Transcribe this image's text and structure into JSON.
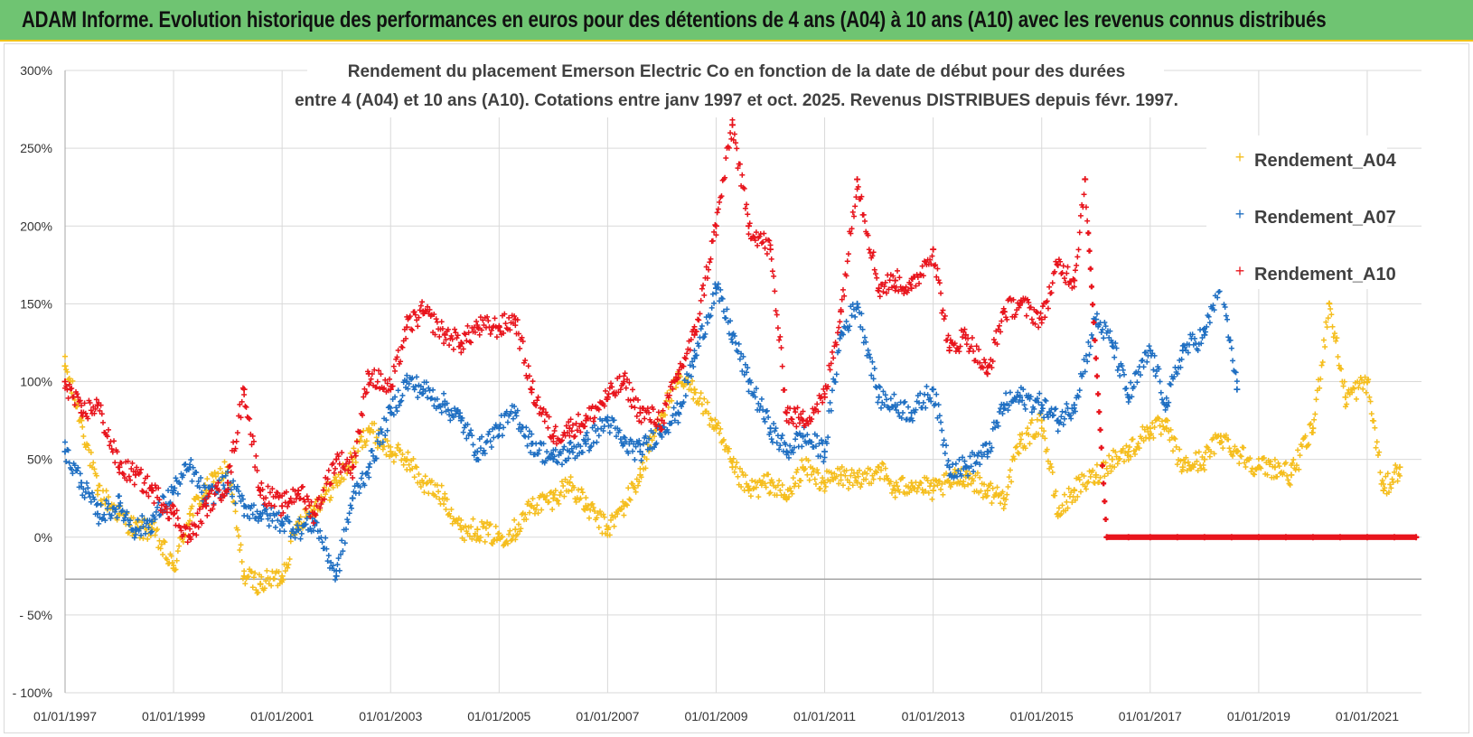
{
  "header": {
    "title": "ADAM Informe. Evolution historique des performances en euros pour des détentions de 4 ans (A04) à 10 ans (A10) avec les revenus connus distribués"
  },
  "colors": {
    "header_bg": "#6fc472",
    "accent_border": "#f0c419",
    "A04": "#f5be1e",
    "A07": "#1f6fc2",
    "A10": "#e8141c",
    "grid": "#d9d9d9"
  },
  "chart_data": {
    "type": "scatter",
    "title_line1": "Rendement du placement Emerson Electric Co en fonction de la date de début pour des durées",
    "title_line2": "entre 4 (A04) et 10 ans (A10). Cotations entre janv 1997 et oct. 2025. Revenus DISTRIBUES depuis févr. 1997.",
    "xlabel": "",
    "ylabel": "",
    "xlim": [
      1997.0,
      2022.0
    ],
    "ylim": [
      -100,
      300
    ],
    "yticks": [
      -100,
      -50,
      0,
      50,
      100,
      150,
      200,
      250,
      300
    ],
    "ytick_labels": [
      "- 100%",
      "- 50%",
      "0%",
      "50%",
      "100%",
      "150%",
      "200%",
      "250%",
      "300%"
    ],
    "xticks": [
      1997,
      1999,
      2001,
      2003,
      2005,
      2007,
      2009,
      2011,
      2013,
      2015,
      2017,
      2019,
      2021
    ],
    "xtick_labels": [
      "01/01/1997",
      "01/01/1999",
      "01/01/2001",
      "01/01/2003",
      "01/01/2005",
      "01/01/2007",
      "01/01/2009",
      "01/01/2011",
      "01/01/2013",
      "01/01/2015",
      "01/01/2017",
      "01/01/2019",
      "01/01/2021"
    ],
    "grid": true,
    "legend_position": "top-right",
    "series": [
      {
        "name": "Rendement_A04",
        "color": "#f5be1e",
        "marker": "+",
        "x": [
          1997.0,
          1997.3,
          1997.6,
          1998.0,
          1998.3,
          1998.6,
          1999.0,
          1999.3,
          1999.6,
          2000.0,
          2000.3,
          2000.6,
          2001.0,
          2001.3,
          2001.6,
          2002.0,
          2002.3,
          2002.6,
          2003.0,
          2003.3,
          2003.6,
          2004.0,
          2004.3,
          2004.6,
          2005.0,
          2005.3,
          2005.6,
          2006.0,
          2006.3,
          2006.6,
          2007.0,
          2007.3,
          2007.6,
          2008.0,
          2008.3,
          2008.6,
          2009.0,
          2009.3,
          2009.6,
          2010.0,
          2010.3,
          2010.6,
          2011.0,
          2011.3,
          2011.6,
          2012.0,
          2012.3,
          2012.6,
          2013.0,
          2013.3,
          2013.6,
          2014.0,
          2014.3,
          2014.6,
          2015.0,
          2015.3,
          2015.6,
          2016.0,
          2016.3,
          2016.6,
          2017.0,
          2017.3,
          2017.6,
          2018.0,
          2018.3,
          2018.6,
          2019.0,
          2019.3,
          2019.6,
          2020.0,
          2020.3,
          2020.6,
          2021.0,
          2021.3,
          2021.6
        ],
        "y": [
          110,
          75,
          30,
          15,
          5,
          5,
          -20,
          15,
          30,
          45,
          -25,
          -30,
          -25,
          10,
          20,
          35,
          50,
          70,
          55,
          50,
          35,
          25,
          5,
          5,
          0,
          5,
          20,
          25,
          35,
          20,
          5,
          20,
          40,
          80,
          100,
          95,
          70,
          45,
          30,
          35,
          25,
          45,
          35,
          40,
          35,
          45,
          30,
          35,
          30,
          35,
          40,
          30,
          25,
          60,
          75,
          15,
          30,
          40,
          50,
          55,
          70,
          70,
          45,
          50,
          65,
          55,
          45,
          45,
          40,
          70,
          150,
          90,
          100,
          30,
          45
        ]
      },
      {
        "name": "Rendement_A07",
        "color": "#1f6fc2",
        "marker": "+",
        "x": [
          1997.0,
          1997.3,
          1997.6,
          1998.0,
          1998.3,
          1998.6,
          1999.0,
          1999.3,
          1999.6,
          2000.0,
          2000.3,
          2000.6,
          2001.0,
          2001.3,
          2001.6,
          2002.0,
          2002.3,
          2002.6,
          2003.0,
          2003.3,
          2003.6,
          2004.0,
          2004.3,
          2004.6,
          2005.0,
          2005.3,
          2005.6,
          2006.0,
          2006.3,
          2006.6,
          2007.0,
          2007.3,
          2007.6,
          2008.0,
          2008.3,
          2008.6,
          2009.0,
          2009.3,
          2009.6,
          2010.0,
          2010.3,
          2010.6,
          2011.0,
          2011.3,
          2011.6,
          2012.0,
          2012.3,
          2012.6,
          2013.0,
          2013.3,
          2013.6,
          2014.0,
          2014.3,
          2014.6,
          2015.0,
          2015.3,
          2015.6,
          2016.0,
          2016.3,
          2016.6,
          2017.0,
          2017.3,
          2017.6,
          2018.0,
          2018.3,
          2018.6
        ],
        "y": [
          55,
          35,
          15,
          20,
          5,
          10,
          30,
          45,
          25,
          35,
          20,
          15,
          10,
          5,
          10,
          -25,
          25,
          45,
          80,
          100,
          95,
          85,
          75,
          55,
          70,
          80,
          60,
          50,
          55,
          60,
          75,
          60,
          55,
          70,
          80,
          115,
          160,
          130,
          100,
          70,
          55,
          65,
          55,
          130,
          150,
          90,
          85,
          80,
          95,
          45,
          45,
          55,
          85,
          90,
          85,
          75,
          85,
          140,
          125,
          90,
          120,
          85,
          120,
          130,
          165,
          95
        ]
      },
      {
        "name": "Rendement_A10",
        "color": "#e8141c",
        "marker": "+",
        "x": [
          1997.0,
          1997.3,
          1997.6,
          1998.0,
          1998.3,
          1998.6,
          1999.0,
          1999.3,
          1999.6,
          2000.0,
          2000.3,
          2000.6,
          2001.0,
          2001.3,
          2001.6,
          2002.0,
          2002.3,
          2002.6,
          2003.0,
          2003.3,
          2003.6,
          2004.0,
          2004.3,
          2004.6,
          2005.0,
          2005.3,
          2005.6,
          2006.0,
          2006.3,
          2006.6,
          2007.0,
          2007.3,
          2007.6,
          2008.0,
          2008.3,
          2008.6,
          2009.0,
          2009.3,
          2009.6,
          2010.0,
          2010.3,
          2010.6,
          2011.0,
          2011.3,
          2011.6,
          2012.0,
          2012.3,
          2012.6,
          2013.0,
          2013.3,
          2013.6,
          2014.0,
          2014.3,
          2014.6,
          2015.0,
          2015.3,
          2015.6,
          2015.8,
          2016.2,
          2016.6,
          2017.0,
          2017.5,
          2018.0,
          2018.5,
          2019.0,
          2019.5,
          2020.0,
          2020.5,
          2021.0,
          2021.5,
          2021.9
        ],
        "y": [
          100,
          80,
          85,
          45,
          40,
          30,
          15,
          0,
          20,
          35,
          95,
          30,
          20,
          30,
          15,
          50,
          45,
          105,
          95,
          135,
          145,
          130,
          125,
          135,
          135,
          140,
          95,
          65,
          70,
          75,
          90,
          100,
          80,
          75,
          105,
          130,
          200,
          265,
          200,
          185,
          80,
          75,
          90,
          145,
          230,
          160,
          165,
          160,
          185,
          120,
          130,
          105,
          145,
          150,
          140,
          175,
          165,
          230,
          0,
          0,
          0,
          0,
          0,
          0,
          0,
          0,
          0,
          0,
          0,
          0,
          0
        ]
      }
    ]
  }
}
